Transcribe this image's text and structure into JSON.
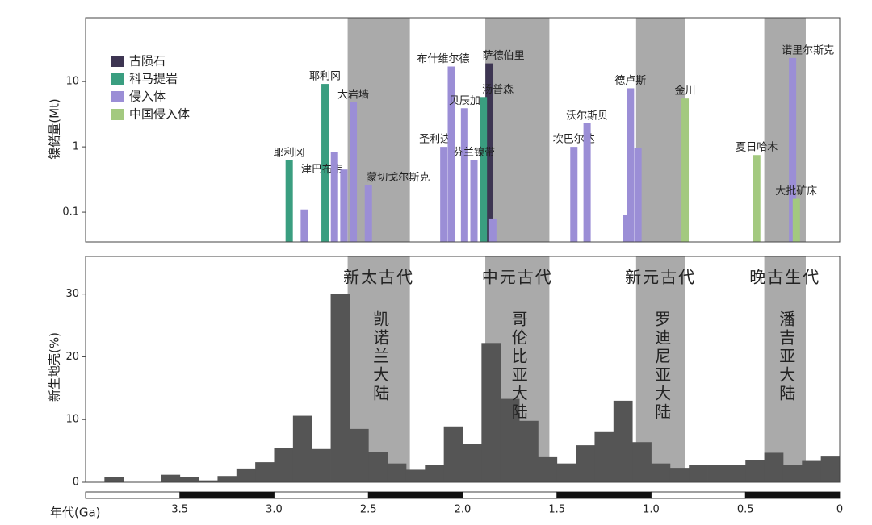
{
  "chart_data": [
    {
      "type": "bar",
      "y_label": "镍储量(Mt)",
      "log_scale": true,
      "xlim": [
        4.0,
        0
      ],
      "ylim": [
        0.035,
        95
      ],
      "yticks": [
        0.1,
        1,
        10
      ],
      "legend": "upper left",
      "series": [
        {
          "name": "古陨石",
          "color": "#3d3552",
          "x": [
            1.86
          ],
          "values": [
            19
          ],
          "labels": [
            "萨德伯里"
          ]
        },
        {
          "name": "科马提岩",
          "color": "#3a9e80",
          "x": [
            2.92,
            2.73,
            1.89
          ],
          "values": [
            0.62,
            9.2,
            5.8
          ],
          "labels": [
            "耶利冈",
            "耶利冈",
            "汤普森"
          ]
        },
        {
          "name": "侵入体",
          "color": "#9b8ed6",
          "x": [
            2.84,
            2.68,
            2.63,
            2.58,
            2.5,
            2.1,
            2.06,
            1.99,
            1.94,
            1.84,
            1.41,
            1.34,
            1.13,
            1.11,
            1.07,
            0.25
          ],
          "values": [
            0.11,
            0.84,
            0.45,
            4.8,
            0.26,
            1.0,
            17,
            3.9,
            0.63,
            0.08,
            1.0,
            2.3,
            0.09,
            7.9,
            0.97,
            23
          ],
          "labels": [
            "津巴布韦",
            null,
            null,
            "大岩墙",
            "蒙切戈尔斯克",
            "圣利达",
            "布什维尔德",
            "贝辰加",
            "芬兰镍带",
            null,
            "坎巴尔达",
            "沃尔斯贝",
            null,
            "德卢斯",
            null,
            "诺里尔斯克"
          ]
        },
        {
          "name": "中国侵入体",
          "color": "#a3c97f",
          "x": [
            0.82,
            0.44,
            0.23
          ],
          "values": [
            5.5,
            0.75,
            0.16
          ],
          "labels": [
            "金川",
            "夏日哈木",
            "大批矿床"
          ]
        }
      ]
    },
    {
      "type": "histogram",
      "y_label": "新生地壳(%)",
      "x_label": "年代(Ga)",
      "color": "#555555",
      "xlim": [
        4.0,
        0
      ],
      "ylim": [
        0,
        36
      ],
      "yticks": [
        0,
        10,
        20,
        30
      ],
      "xticks": [
        3.5,
        {
          "value": 3,
          "label": "3.0"
        },
        2.5,
        {
          "value": 2,
          "label": "2.0"
        },
        1.5,
        {
          "value": 1,
          "label": "1.0"
        },
        0.5,
        0
      ],
      "bins": [
        4.0,
        3.9,
        3.8,
        3.7,
        3.6,
        3.5,
        3.4,
        3.3,
        3.2,
        3.1,
        3.0,
        2.9,
        2.8,
        2.7,
        2.6,
        2.5,
        2.4,
        2.3,
        2.2,
        2.1,
        2.0,
        1.9,
        1.8,
        1.7,
        1.6,
        1.5,
        1.4,
        1.3,
        1.2,
        1.1,
        1.0,
        0.9,
        0.8,
        0.7,
        0.6,
        0.5,
        0.4,
        0.3,
        0.2,
        0.1,
        0
      ],
      "values": [
        0,
        0.9,
        0,
        0,
        1.2,
        0.8,
        0.3,
        1.0,
        2.2,
        3.2,
        5.4,
        10.6,
        5.3,
        30,
        8.5,
        4.8,
        3.0,
        2.0,
        2.7,
        8.9,
        6.1,
        22.2,
        13.3,
        9.8,
        4.0,
        3.0,
        5.9,
        8.0,
        13.0,
        6.4,
        3.0,
        2.3,
        2.7,
        2.8,
        2.8,
        3.6,
        4.7,
        2.7,
        3.4,
        4.1
      ],
      "bands": [
        {
          "range": [
            2.61,
            2.28
          ],
          "era": "新太古代",
          "continent": "凯诺兰大陆"
        },
        {
          "range": [
            1.88,
            1.54
          ],
          "era": "中元古代",
          "continent": "哥伦比亚大陆"
        },
        {
          "range": [
            1.08,
            0.82
          ],
          "era": "新元古代",
          "continent": "罗迪尼亚大陆"
        },
        {
          "range": [
            0.4,
            0.18
          ],
          "era": "晚古生代",
          "continent": "潘吉亚大陆"
        }
      ]
    }
  ]
}
